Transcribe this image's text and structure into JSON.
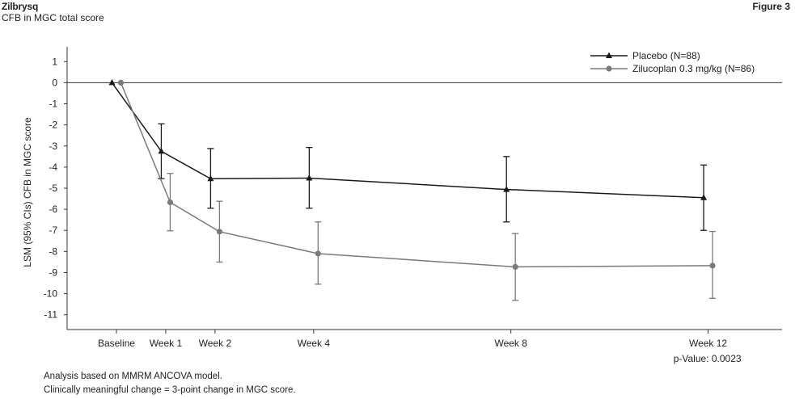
{
  "header": {
    "title": "Zilbrysq",
    "subtitle": "CFB in MGC total score",
    "figure_label": "Figure 3"
  },
  "footnotes": {
    "line1": "Analysis based on MMRM ANCOVA model.",
    "line2": "Clinically meaningful change = 3-point change in MGC score."
  },
  "chart_data": {
    "type": "line",
    "categories": [
      "Baseline",
      "Week 1",
      "Week 2",
      "Week 4",
      "Week 8",
      "Week 12"
    ],
    "x": [
      0,
      1,
      2,
      4,
      8,
      12
    ],
    "ylabel": "LSM (95% CIs) CFB in MGC score",
    "xlabel": "",
    "ylim": [
      -11.7,
      1.7
    ],
    "yticks": [
      1,
      0,
      -1,
      -2,
      -3,
      -4,
      -5,
      -6,
      -7,
      -8,
      -9,
      -10,
      -11
    ],
    "reference_line": 0,
    "legend_position": "top-right",
    "annotation": "p-Value: 0.0023",
    "series": [
      {
        "name": "Placebo (N=88)",
        "marker": "triangle",
        "color": "#1a1a1a",
        "values": [
          0,
          -3.25,
          -4.55,
          -4.52,
          -5.06,
          -5.45
        ],
        "lower": [
          null,
          -4.55,
          -5.95,
          -5.95,
          -6.6,
          -7.0
        ],
        "upper": [
          null,
          -1.95,
          -3.12,
          -3.07,
          -3.5,
          -3.9
        ]
      },
      {
        "name": "Zilucoplan 0.3 mg/kg (N=86)",
        "marker": "circle",
        "color": "#7a7a7a",
        "values": [
          0,
          -5.67,
          -7.06,
          -8.1,
          -8.73,
          -8.67
        ],
        "lower": [
          null,
          -7.02,
          -8.5,
          -9.55,
          -10.32,
          -10.22
        ],
        "upper": [
          null,
          -4.3,
          -5.62,
          -6.6,
          -7.15,
          -7.05
        ]
      }
    ]
  }
}
